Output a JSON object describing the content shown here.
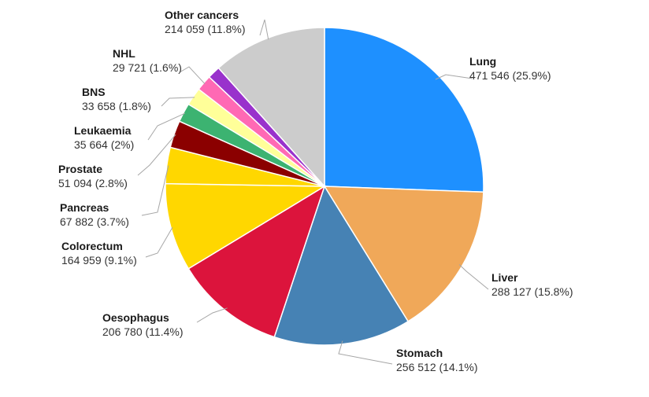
{
  "chart_data": {
    "type": "pie",
    "title": "",
    "start": "12 o'clock",
    "direction": "clockwise",
    "slices": [
      {
        "name": "Lung",
        "value": 471546,
        "display_value": "471 546",
        "percent_label": "25.9%",
        "color": "#1e90ff"
      },
      {
        "name": "Liver",
        "value": 288127,
        "display_value": "288 127",
        "percent_label": "15.8%",
        "color": "#f0a859"
      },
      {
        "name": "Stomach",
        "value": 256512,
        "display_value": "256 512",
        "percent_label": "14.1%",
        "color": "#4682b4"
      },
      {
        "name": "Oesophagus",
        "value": 206780,
        "display_value": "206 780",
        "percent_label": "11.4%",
        "color": "#dc143c"
      },
      {
        "name": "Colorectum",
        "value": 164959,
        "display_value": "164 959",
        "percent_label": "9.1%",
        "color": "#ffd700"
      },
      {
        "name": "Pancreas",
        "value": 67882,
        "display_value": "67 882",
        "percent_label": "3.7%",
        "color": "#ffd700"
      },
      {
        "name": "Prostate",
        "value": 51094,
        "display_value": "51 094",
        "percent_label": "2.8%",
        "color": "#8b0000"
      },
      {
        "name": "Leukaemia",
        "value": 35664,
        "display_value": "35 664",
        "percent_label": "2%",
        "color": "#3cb371"
      },
      {
        "name": "BNS",
        "value": 33658,
        "display_value": "33 658",
        "percent_label": "1.8%",
        "color": "#ffff99"
      },
      {
        "name": "NHL",
        "value": 29721,
        "display_value": "29 721",
        "percent_label": "1.6%",
        "color": "#ff69b4"
      },
      {
        "name": "Other cancers",
        "value": 214059,
        "display_value": "214 059",
        "percent_label": "11.8%",
        "color": "#cccccc"
      }
    ],
    "extra_slice_colors": [
      "#9932cc"
    ]
  }
}
